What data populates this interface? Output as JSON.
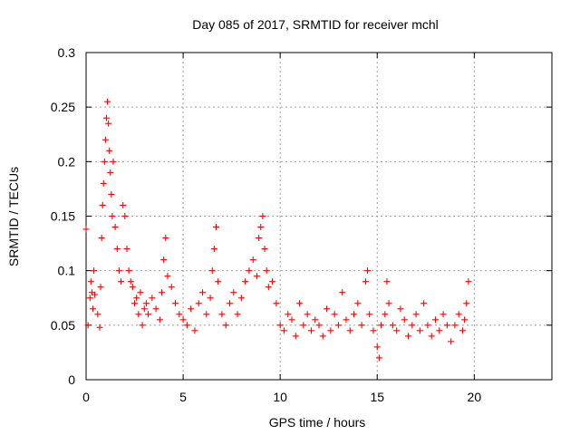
{
  "chart_data": {
    "type": "scatter",
    "title": "Day 085 of 2017, SRMTID for receiver mchl",
    "xlabel": "GPS time / hours",
    "ylabel": "SRMTID / TECUs",
    "xlim": [
      0,
      24
    ],
    "ylim": [
      0,
      0.3
    ],
    "grid": true,
    "marker": "+",
    "marker_color": "#ff0000",
    "x_ticks": [
      {
        "value": 0,
        "label": "0"
      },
      {
        "value": 5,
        "label": "5"
      },
      {
        "value": 10,
        "label": "10"
      },
      {
        "value": 15,
        "label": "15"
      },
      {
        "value": 20,
        "label": "20"
      }
    ],
    "y_ticks": [
      {
        "value": 0,
        "label": "0"
      },
      {
        "value": 0.05,
        "label": "0.05"
      },
      {
        "value": 0.1,
        "label": "0.1"
      },
      {
        "value": 0.15,
        "label": "0.15"
      },
      {
        "value": 0.2,
        "label": "0.2"
      },
      {
        "value": 0.25,
        "label": "0.25"
      },
      {
        "value": 0.3,
        "label": "0.3"
      }
    ],
    "series": [
      {
        "name": "SRMTID",
        "x": [
          0.0,
          0.1,
          0.2,
          0.25,
          0.3,
          0.35,
          0.4,
          0.45,
          0.6,
          0.7,
          0.75,
          0.8,
          0.85,
          0.9,
          0.95,
          1.0,
          1.05,
          1.1,
          1.15,
          1.2,
          1.25,
          1.3,
          1.35,
          1.4,
          1.5,
          1.6,
          1.7,
          1.8,
          1.9,
          2.0,
          2.1,
          2.2,
          2.3,
          2.4,
          2.5,
          2.6,
          2.7,
          2.8,
          2.9,
          3.0,
          3.1,
          3.2,
          3.4,
          3.6,
          3.8,
          3.9,
          4.0,
          4.1,
          4.2,
          4.4,
          4.6,
          4.8,
          5.0,
          5.2,
          5.4,
          5.6,
          5.8,
          6.0,
          6.2,
          6.4,
          6.5,
          6.6,
          6.7,
          6.8,
          7.0,
          7.2,
          7.4,
          7.6,
          7.8,
          8.0,
          8.2,
          8.4,
          8.6,
          8.8,
          8.9,
          9.0,
          9.1,
          9.2,
          9.3,
          9.4,
          9.6,
          9.8,
          10.0,
          10.2,
          10.4,
          10.6,
          10.8,
          11.0,
          11.2,
          11.4,
          11.6,
          11.8,
          12.0,
          12.2,
          12.4,
          12.6,
          12.8,
          13.0,
          13.2,
          13.4,
          13.6,
          13.8,
          14.0,
          14.2,
          14.4,
          14.5,
          14.6,
          14.8,
          15.0,
          15.1,
          15.2,
          15.4,
          15.5,
          15.6,
          15.8,
          16.0,
          16.2,
          16.4,
          16.6,
          16.8,
          17.0,
          17.2,
          17.4,
          17.6,
          17.8,
          18.0,
          18.2,
          18.4,
          18.6,
          18.8,
          19.0,
          19.2,
          19.4,
          19.5,
          19.6,
          19.7
        ],
        "y": [
          0.138,
          0.05,
          0.075,
          0.09,
          0.08,
          0.065,
          0.1,
          0.078,
          0.06,
          0.048,
          0.085,
          0.13,
          0.16,
          0.18,
          0.2,
          0.22,
          0.24,
          0.255,
          0.235,
          0.21,
          0.19,
          0.17,
          0.15,
          0.2,
          0.14,
          0.12,
          0.1,
          0.09,
          0.16,
          0.15,
          0.12,
          0.1,
          0.09,
          0.085,
          0.07,
          0.075,
          0.06,
          0.08,
          0.05,
          0.065,
          0.07,
          0.06,
          0.075,
          0.065,
          0.055,
          0.08,
          0.11,
          0.13,
          0.095,
          0.085,
          0.07,
          0.06,
          0.055,
          0.05,
          0.065,
          0.045,
          0.07,
          0.08,
          0.06,
          0.075,
          0.1,
          0.12,
          0.14,
          0.09,
          0.06,
          0.05,
          0.07,
          0.08,
          0.06,
          0.075,
          0.09,
          0.1,
          0.11,
          0.095,
          0.13,
          0.14,
          0.15,
          0.12,
          0.1,
          0.085,
          0.09,
          0.07,
          0.05,
          0.045,
          0.06,
          0.055,
          0.04,
          0.07,
          0.05,
          0.06,
          0.045,
          0.055,
          0.05,
          0.04,
          0.065,
          0.045,
          0.06,
          0.05,
          0.08,
          0.055,
          0.045,
          0.06,
          0.07,
          0.05,
          0.09,
          0.1,
          0.06,
          0.045,
          0.03,
          0.02,
          0.05,
          0.06,
          0.09,
          0.07,
          0.05,
          0.045,
          0.065,
          0.055,
          0.04,
          0.05,
          0.06,
          0.045,
          0.07,
          0.05,
          0.04,
          0.055,
          0.045,
          0.06,
          0.05,
          0.035,
          0.05,
          0.06,
          0.045,
          0.055,
          0.07,
          0.09
        ]
      }
    ]
  }
}
